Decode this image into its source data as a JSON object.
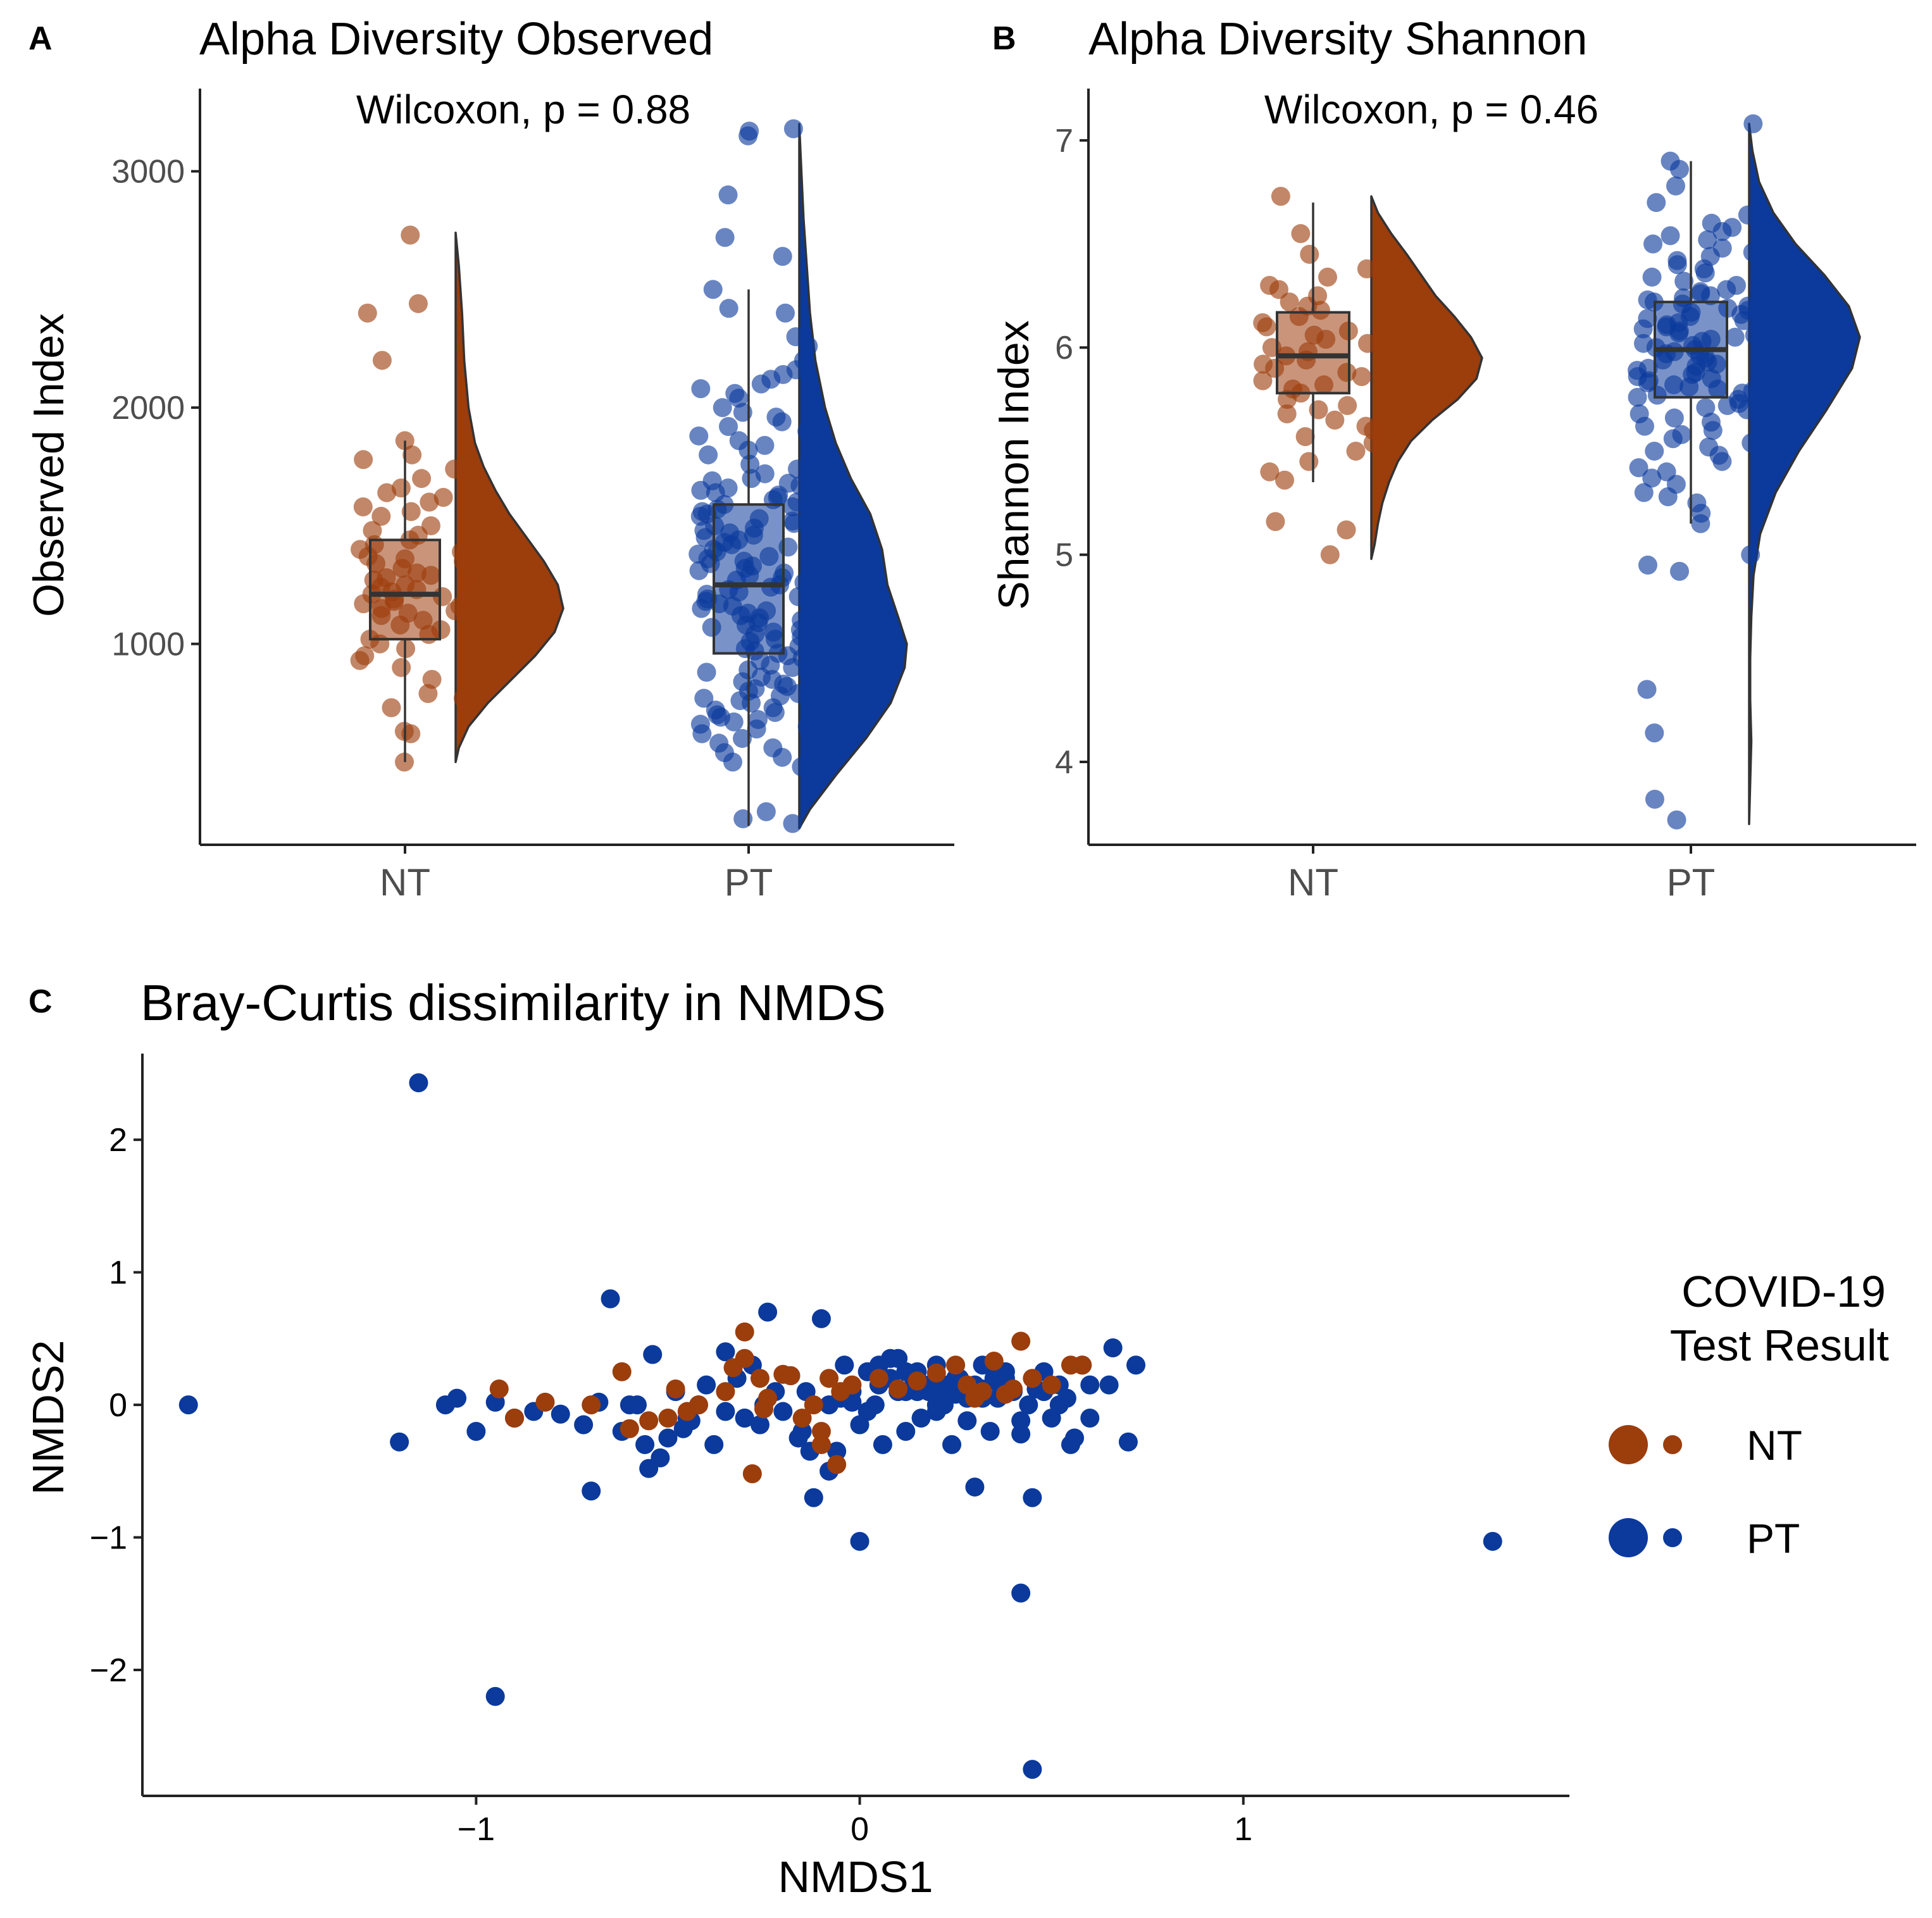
{
  "colors": {
    "nt": "#9c3d0c",
    "pt": "#0b3a9c",
    "axis": "#222222",
    "tick_label": "#4d4d4d"
  },
  "panels": {
    "A": {
      "tag": "A",
      "title": "Alpha Diversity Observed",
      "subtitle": "Wilcoxon, p = 0.88",
      "ylabel": "Observed Index"
    },
    "B": {
      "tag": "B",
      "title": "Alpha Diversity Shannon",
      "subtitle": "Wilcoxon, p = 0.46",
      "ylabel": "Shannon Index"
    },
    "C": {
      "tag": "C",
      "title": "Bray-Curtis dissimilarity in NMDS",
      "xlabel": "NMDS1",
      "ylabel": "NMDS2"
    }
  },
  "legend": {
    "title_line1": "COVID-19",
    "title_line2": "Test Result",
    "items": [
      "NT",
      "PT"
    ]
  },
  "chart_data": [
    {
      "type": "raincloud",
      "panel": "A",
      "title": "Alpha Diversity Observed",
      "subtitle": "Wilcoxon, p = 0.88",
      "xlabel": "",
      "ylabel": "Observed Index",
      "categories": [
        "NT",
        "PT"
      ],
      "ylim": [
        150,
        3350
      ],
      "yticks": [
        1000,
        2000,
        3000
      ],
      "box": [
        {
          "group": "NT",
          "whisker_low": 500,
          "q1": 1020,
          "median": 1210,
          "q3": 1440,
          "whisker_high": 1860
        },
        {
          "group": "PT",
          "whisker_low": 230,
          "q1": 960,
          "median": 1250,
          "q3": 1590,
          "whisker_high": 2500
        }
      ],
      "density": [
        {
          "group": "NT",
          "y": [
            500,
            560,
            650,
            750,
            850,
            950,
            1050,
            1150,
            1250,
            1350,
            1450,
            1550,
            1650,
            1750,
            1850,
            2000,
            2200,
            2400,
            2600,
            2740
          ],
          "d": [
            0.0,
            0.03,
            0.12,
            0.3,
            0.52,
            0.74,
            0.92,
            1.0,
            0.95,
            0.82,
            0.66,
            0.5,
            0.37,
            0.26,
            0.18,
            0.12,
            0.08,
            0.06,
            0.03,
            0.0
          ]
        },
        {
          "group": "PT",
          "y": [
            220,
            300,
            450,
            600,
            750,
            900,
            1000,
            1100,
            1250,
            1400,
            1550,
            1700,
            1850,
            2000,
            2200,
            2400,
            2600,
            2800,
            3000,
            3200
          ],
          "d": [
            0.0,
            0.1,
            0.35,
            0.62,
            0.85,
            0.98,
            1.0,
            0.93,
            0.82,
            0.77,
            0.66,
            0.48,
            0.34,
            0.24,
            0.15,
            0.1,
            0.07,
            0.04,
            0.02,
            0.0
          ]
        }
      ],
      "points": {
        "NT": [
          2730,
          2440,
          2400,
          2200,
          1860,
          1800,
          1780,
          1740,
          1700,
          1660,
          1640,
          1620,
          1600,
          1580,
          1560,
          1540,
          1500,
          1480,
          1460,
          1440,
          1420,
          1400,
          1390,
          1380,
          1370,
          1360,
          1350,
          1340,
          1320,
          1300,
          1290,
          1280,
          1270,
          1260,
          1250,
          1240,
          1230,
          1220,
          1210,
          1200,
          1190,
          1180,
          1170,
          1160,
          1150,
          1140,
          1130,
          1120,
          1100,
          1080,
          1060,
          1040,
          1020,
          1000,
          980,
          950,
          930,
          900,
          850,
          790,
          770,
          730,
          630,
          620,
          500
        ],
        "PT": [
          3180,
          3170,
          3150,
          2900,
          2720,
          2640,
          2500,
          2420,
          2400,
          2300,
          2260,
          2200,
          2160,
          2140,
          2120,
          2100,
          2080,
          2060,
          2040,
          2000,
          1980,
          1960,
          1940,
          1920,
          1900,
          1880,
          1860,
          1840,
          1820,
          1800,
          1780,
          1760,
          1740,
          1720,
          1700,
          1690,
          1680,
          1670,
          1660,
          1650,
          1640,
          1630,
          1620,
          1610,
          1600,
          1590,
          1580,
          1570,
          1560,
          1550,
          1540,
          1530,
          1520,
          1510,
          1500,
          1490,
          1480,
          1470,
          1460,
          1450,
          1440,
          1430,
          1420,
          1410,
          1400,
          1390,
          1380,
          1370,
          1360,
          1350,
          1340,
          1330,
          1320,
          1310,
          1300,
          1290,
          1280,
          1270,
          1260,
          1250,
          1240,
          1230,
          1220,
          1210,
          1200,
          1190,
          1180,
          1170,
          1160,
          1150,
          1140,
          1130,
          1120,
          1110,
          1100,
          1090,
          1080,
          1070,
          1060,
          1050,
          1040,
          1030,
          1020,
          1010,
          1000,
          990,
          980,
          970,
          960,
          950,
          940,
          930,
          920,
          910,
          900,
          890,
          880,
          870,
          860,
          850,
          840,
          830,
          820,
          810,
          800,
          790,
          780,
          770,
          760,
          750,
          740,
          730,
          720,
          710,
          700,
          690,
          680,
          670,
          660,
          650,
          640,
          620,
          600,
          580,
          560,
          540,
          520,
          500,
          480,
          290,
          260,
          240
        ]
      }
    },
    {
      "type": "raincloud",
      "panel": "B",
      "title": "Alpha Diversity Shannon",
      "subtitle": "Wilcoxon, p = 0.46",
      "xlabel": "",
      "ylabel": "Shannon Index",
      "categories": [
        "NT",
        "PT"
      ],
      "ylim": [
        3.6,
        7.25
      ],
      "yticks": [
        4,
        5,
        6,
        7
      ],
      "box": [
        {
          "group": "NT",
          "whisker_low": 5.35,
          "q1": 5.78,
          "median": 5.96,
          "q3": 6.17,
          "whisker_high": 6.7
        },
        {
          "group": "PT",
          "whisker_low": 5.15,
          "q1": 5.76,
          "median": 5.99,
          "q3": 6.22,
          "whisker_high": 6.9
        }
      ],
      "density": [
        {
          "group": "NT",
          "y": [
            4.98,
            5.05,
            5.15,
            5.25,
            5.35,
            5.45,
            5.55,
            5.65,
            5.75,
            5.85,
            5.95,
            6.05,
            6.15,
            6.25,
            6.35,
            6.45,
            6.55,
            6.65,
            6.73
          ],
          "d": [
            0.0,
            0.03,
            0.06,
            0.1,
            0.16,
            0.24,
            0.36,
            0.55,
            0.78,
            0.95,
            1.0,
            0.9,
            0.75,
            0.58,
            0.45,
            0.32,
            0.18,
            0.06,
            0.0
          ]
        },
        {
          "group": "PT",
          "y": [
            3.7,
            3.9,
            4.1,
            4.3,
            4.5,
            4.7,
            4.9,
            5.1,
            5.3,
            5.5,
            5.7,
            5.9,
            6.05,
            6.2,
            6.35,
            6.5,
            6.65,
            6.8,
            6.95,
            7.08
          ],
          "d": [
            0.0,
            0.01,
            0.02,
            0.01,
            0.01,
            0.02,
            0.04,
            0.1,
            0.24,
            0.45,
            0.7,
            0.93,
            1.0,
            0.9,
            0.68,
            0.42,
            0.22,
            0.09,
            0.03,
            0.0
          ]
        }
      ],
      "points": {
        "NT": [
          6.73,
          6.55,
          6.45,
          6.38,
          6.34,
          6.3,
          6.28,
          6.25,
          6.22,
          6.2,
          6.18,
          6.15,
          6.12,
          6.1,
          6.08,
          6.06,
          6.04,
          6.02,
          6.0,
          5.98,
          5.96,
          5.94,
          5.92,
          5.9,
          5.88,
          5.86,
          5.84,
          5.82,
          5.8,
          5.78,
          5.75,
          5.72,
          5.7,
          5.68,
          5.65,
          5.62,
          5.6,
          5.57,
          5.54,
          5.5,
          5.45,
          5.4,
          5.36,
          5.16,
          5.12,
          5.0
        ],
        "PT": [
          7.08,
          6.9,
          6.86,
          6.78,
          6.7,
          6.64,
          6.6,
          6.58,
          6.56,
          6.54,
          6.52,
          6.5,
          6.48,
          6.46,
          6.44,
          6.42,
          6.4,
          6.38,
          6.36,
          6.34,
          6.32,
          6.3,
          6.28,
          6.27,
          6.26,
          6.25,
          6.24,
          6.23,
          6.22,
          6.21,
          6.2,
          6.19,
          6.18,
          6.17,
          6.16,
          6.15,
          6.14,
          6.13,
          6.12,
          6.11,
          6.1,
          6.09,
          6.08,
          6.07,
          6.06,
          6.05,
          6.04,
          6.03,
          6.02,
          6.01,
          6.0,
          5.99,
          5.98,
          5.97,
          5.96,
          5.95,
          5.94,
          5.93,
          5.92,
          5.91,
          5.9,
          5.89,
          5.88,
          5.87,
          5.86,
          5.85,
          5.84,
          5.83,
          5.82,
          5.81,
          5.8,
          5.79,
          5.78,
          5.77,
          5.76,
          5.75,
          5.74,
          5.73,
          5.72,
          5.71,
          5.7,
          5.68,
          5.66,
          5.64,
          5.62,
          5.6,
          5.58,
          5.56,
          5.54,
          5.52,
          5.5,
          5.48,
          5.45,
          5.42,
          5.4,
          5.37,
          5.34,
          5.3,
          5.28,
          5.25,
          5.2,
          5.15,
          5.0,
          4.95,
          4.92,
          4.35,
          4.14,
          3.82,
          3.72
        ]
      }
    },
    {
      "type": "scatter",
      "panel": "C",
      "title": "Bray-Curtis dissimilarity in NMDS",
      "xlabel": "NMDS1",
      "ylabel": "NMDS2",
      "xlim": [
        -1.87,
        1.85
      ],
      "ylim": [
        -2.95,
        2.65
      ],
      "xticks": [
        -1,
        0,
        1
      ],
      "yticks": [
        -2,
        -1,
        0,
        1,
        2
      ],
      "legend_title": "COVID-19 Test Result",
      "series": [
        {
          "name": "NT",
          "x": [
            -0.94,
            -0.9,
            -0.82,
            -0.7,
            -0.62,
            -0.6,
            -0.55,
            -0.5,
            -0.48,
            -0.45,
            -0.42,
            -0.35,
            -0.33,
            -0.3,
            -0.28,
            -0.26,
            -0.25,
            -0.24,
            -0.2,
            -0.18,
            -0.15,
            -0.12,
            -0.1,
            -0.08,
            -0.06,
            -0.05,
            -0.02,
            0.05,
            0.1,
            0.15,
            0.2,
            0.25,
            0.28,
            0.32,
            0.35,
            0.38,
            0.42,
            0.45,
            0.5,
            0.55,
            0.58,
            -0.3,
            -0.1,
            0.3,
            0.4
          ],
          "y": [
            0.12,
            -0.1,
            0.02,
            0.0,
            0.25,
            -0.18,
            -0.12,
            -0.1,
            0.12,
            -0.05,
            0.0,
            0.1,
            0.28,
            0.55,
            -0.52,
            0.2,
            -0.03,
            0.05,
            0.23,
            0.22,
            -0.1,
            0.0,
            -0.2,
            0.2,
            -0.45,
            0.1,
            0.15,
            0.2,
            0.12,
            0.18,
            0.24,
            0.3,
            0.15,
            0.1,
            0.33,
            0.08,
            0.48,
            0.2,
            0.15,
            0.3,
            0.3,
            0.35,
            -0.3,
            0.05,
            0.12
          ]
        },
        {
          "name": "PT",
          "x": [
            -1.75,
            -1.15,
            -0.95,
            -1.2,
            -1.08,
            -1.05,
            -1.0,
            -0.95,
            -0.9,
            -0.85,
            -0.78,
            -0.72,
            -0.68,
            -0.65,
            -0.62,
            -0.58,
            -0.56,
            -0.54,
            -0.52,
            -0.5,
            -0.48,
            -0.46,
            -0.44,
            -0.42,
            -0.4,
            -0.38,
            -0.35,
            -0.32,
            -0.3,
            -0.28,
            -0.26,
            -0.24,
            -0.22,
            -0.2,
            -0.18,
            -0.16,
            -0.14,
            -0.12,
            -0.1,
            -0.08,
            -0.06,
            -0.04,
            -0.02,
            0.0,
            0.02,
            0.04,
            0.06,
            0.08,
            0.1,
            0.12,
            0.14,
            0.16,
            0.18,
            0.2,
            0.22,
            0.24,
            0.26,
            0.28,
            0.3,
            0.32,
            0.34,
            0.36,
            0.38,
            0.4,
            0.42,
            0.44,
            0.46,
            0.48,
            0.5,
            0.52,
            0.54,
            0.56,
            0.58,
            0.6,
            0.65,
            0.7,
            0.72,
            0.66,
            -0.3,
            -0.25,
            -0.08,
            0.0,
            0.42,
            0.45,
            0.45,
            1.65,
            -0.7,
            -0.55,
            -0.13,
            0.3,
            0.05,
            0.15,
            0.25,
            0.35,
            0.2,
            0.1,
            -0.05,
            0.12,
            0.22,
            0.32,
            0.38,
            0.28,
            0.18,
            0.08,
            -0.15,
            -0.35,
            -0.45,
            -0.6,
            0.48,
            0.52,
            0.55,
            0.6,
            0.35,
            0.25,
            0.15,
            0.05,
            -0.02,
            0.02,
            0.12,
            0.22,
            0.32,
            0.42,
            0.3,
            0.2
          ],
          "y": [
            0.0,
            2.43,
            -2.2,
            -0.28,
            0.0,
            0.05,
            -0.2,
            0.02,
            -0.1,
            -0.05,
            -0.07,
            -0.15,
            0.02,
            0.8,
            -0.2,
            0.0,
            -0.3,
            0.38,
            -0.4,
            -0.25,
            0.1,
            -0.18,
            -0.12,
            0.0,
            0.15,
            -0.3,
            0.4,
            0.2,
            -0.1,
            0.3,
            -0.15,
            0.7,
            0.1,
            -0.05,
            0.22,
            -0.25,
            0.1,
            -0.7,
            0.65,
            0.0,
            -0.35,
            0.3,
            0.1,
            -0.15,
            0.25,
            0.0,
            -0.3,
            0.35,
            0.1,
            -0.2,
            0.2,
            -0.1,
            0.15,
            0.3,
            0.0,
            -0.3,
            0.2,
            -0.12,
            0.15,
            0.3,
            -0.2,
            0.05,
            0.25,
            0.1,
            -0.22,
            0.0,
            0.12,
            0.25,
            -0.1,
            0.15,
            0.05,
            -0.25,
            0.3,
            -0.1,
            0.15,
            -0.28,
            0.3,
            0.43,
            -0.1,
            0.0,
            -0.5,
            -1.03,
            -1.42,
            -2.75,
            -0.7,
            -1.03,
            -0.65,
            -0.48,
            -0.35,
            -0.62,
            0.3,
            0.25,
            0.2,
            0.18,
            -0.05,
            0.35,
            0.05,
            0.1,
            0.15,
            0.12,
            0.2,
            0.05,
            0.1,
            0.2,
            -0.2,
            -0.05,
            -0.1,
            0.0,
            0.1,
            0.0,
            -0.3,
            0.15,
            0.2,
            0.08,
            0.1,
            0.15,
            0.02,
            -0.05,
            0.25,
            0.1,
            0.05,
            -0.12,
            0.1,
            0.0
          ]
        }
      ]
    }
  ]
}
